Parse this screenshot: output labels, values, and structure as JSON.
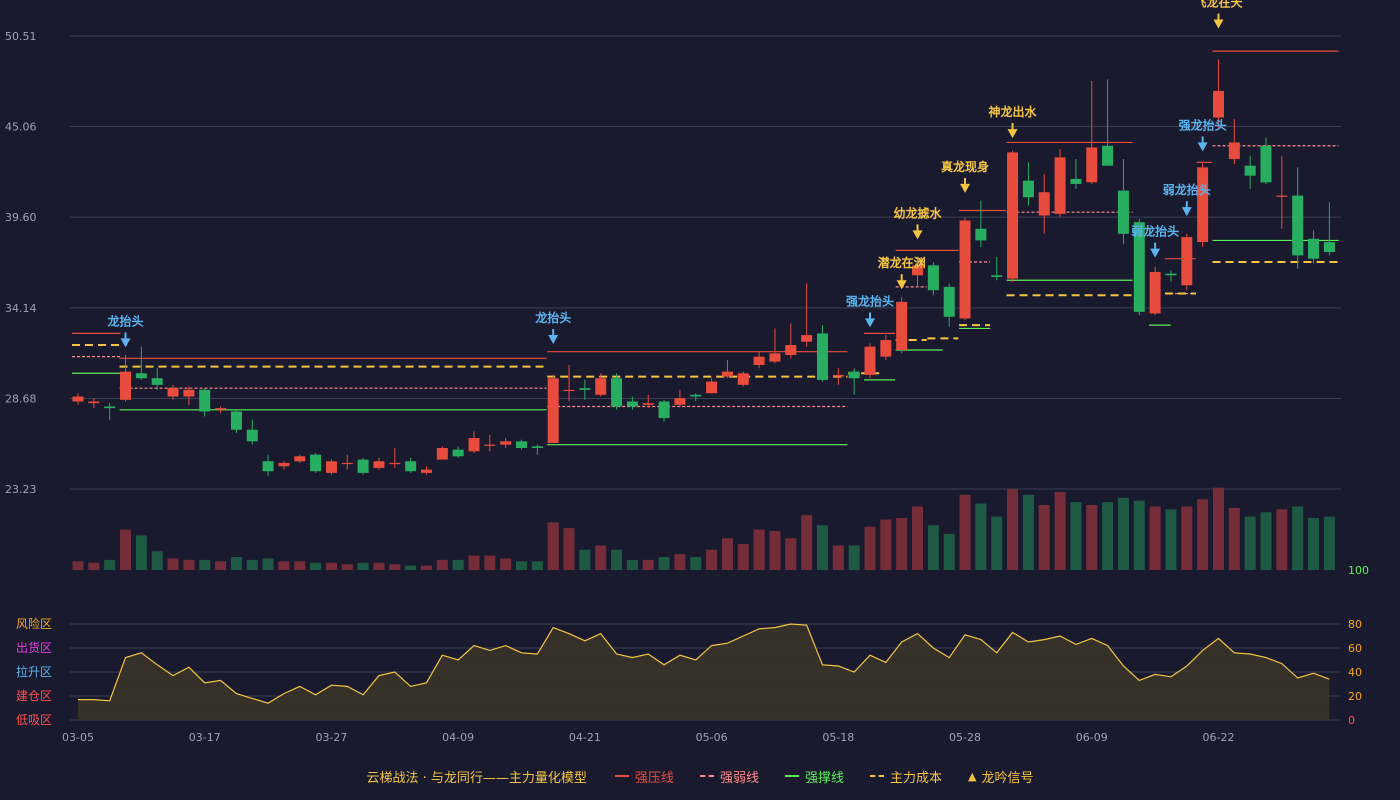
{
  "chart_data": {
    "type": "candlestick",
    "y_ticks": [
      "50.51",
      "45.06",
      "39.60",
      "34.14",
      "28.68",
      "23.23"
    ],
    "ylim": [
      23.23,
      50.51
    ],
    "x_tick_labels": [
      "03-05",
      "03-17",
      "03-27",
      "04-09",
      "04-21",
      "05-06",
      "05-18",
      "05-28",
      "06-09",
      "06-22"
    ],
    "x_tick_index": [
      0,
      8,
      16,
      24,
      32,
      40,
      48,
      56,
      64,
      72
    ],
    "candles": [
      [
        28.5,
        28.8,
        29.0,
        28.3
      ],
      [
        28.4,
        28.5,
        28.7,
        28.1
      ],
      [
        28.2,
        28.1,
        28.4,
        27.4
      ],
      [
        28.6,
        30.3,
        31.3,
        28.5
      ],
      [
        30.2,
        29.9,
        31.8,
        29.8
      ],
      [
        29.9,
        29.5,
        30.5,
        29.2
      ],
      [
        28.8,
        29.3,
        29.5,
        28.6
      ],
      [
        28.8,
        29.2,
        29.4,
        28.3
      ],
      [
        29.2,
        27.9,
        29.3,
        27.6
      ],
      [
        28.0,
        28.1,
        28.2,
        27.8
      ],
      [
        27.9,
        26.8,
        28.0,
        26.6
      ],
      [
        26.8,
        26.1,
        27.4,
        25.9
      ],
      [
        24.9,
        24.3,
        25.3,
        24.0
      ],
      [
        24.6,
        24.8,
        24.9,
        24.4
      ],
      [
        24.9,
        25.2,
        25.3,
        24.8
      ],
      [
        25.3,
        24.3,
        25.4,
        24.2
      ],
      [
        24.2,
        24.9,
        25.0,
        24.1
      ],
      [
        24.8,
        24.8,
        25.3,
        24.4
      ],
      [
        25.0,
        24.2,
        25.1,
        24.1
      ],
      [
        24.5,
        24.9,
        25.1,
        24.4
      ],
      [
        24.8,
        24.8,
        25.7,
        24.5
      ],
      [
        24.9,
        24.3,
        25.1,
        24.2
      ],
      [
        24.2,
        24.4,
        24.6,
        24.1
      ],
      [
        25.0,
        25.7,
        25.8,
        25.0
      ],
      [
        25.6,
        25.2,
        25.8,
        25.1
      ],
      [
        25.5,
        26.3,
        26.7,
        25.4
      ],
      [
        25.9,
        25.9,
        26.5,
        25.5
      ],
      [
        25.9,
        26.1,
        26.3,
        25.7
      ],
      [
        26.1,
        25.7,
        26.2,
        25.6
      ],
      [
        25.8,
        25.7,
        25.9,
        25.3
      ],
      [
        26.0,
        29.9,
        30.1,
        26.0
      ],
      [
        29.2,
        29.2,
        30.7,
        28.5
      ],
      [
        29.3,
        29.2,
        29.8,
        28.6
      ],
      [
        28.9,
        29.9,
        30.2,
        28.8
      ],
      [
        29.9,
        28.2,
        30.2,
        28.0
      ],
      [
        28.5,
        28.2,
        28.8,
        28.0
      ],
      [
        28.3,
        28.4,
        28.9,
        28.1
      ],
      [
        28.5,
        27.5,
        28.6,
        27.3
      ],
      [
        28.3,
        28.7,
        29.2,
        28.2
      ],
      [
        28.9,
        28.8,
        29.0,
        28.5
      ],
      [
        29.0,
        29.7,
        29.9,
        29.0
      ],
      [
        30.0,
        30.3,
        31.0,
        29.9
      ],
      [
        29.5,
        30.2,
        30.3,
        29.4
      ],
      [
        30.7,
        31.2,
        31.5,
        30.5
      ],
      [
        30.9,
        31.4,
        32.9,
        30.8
      ],
      [
        31.3,
        31.9,
        33.2,
        31.1
      ],
      [
        32.1,
        32.5,
        35.6,
        31.8
      ],
      [
        32.6,
        29.8,
        33.1,
        29.7
      ],
      [
        30.0,
        30.1,
        30.5,
        29.5
      ],
      [
        30.3,
        29.9,
        30.5,
        28.9
      ],
      [
        30.1,
        31.8,
        32.0,
        29.9
      ],
      [
        31.2,
        32.2,
        32.5,
        31.0
      ],
      [
        31.6,
        34.5,
        34.8,
        31.4
      ],
      [
        36.1,
        36.7,
        36.8,
        35.4
      ],
      [
        36.7,
        35.2,
        36.9,
        34.9
      ],
      [
        35.4,
        33.6,
        35.6,
        33.0
      ],
      [
        33.5,
        39.4,
        39.6,
        33.4
      ],
      [
        38.9,
        38.2,
        40.6,
        37.8
      ],
      [
        36.1,
        36.0,
        37.2,
        35.8
      ],
      [
        35.9,
        43.5,
        43.6,
        35.7
      ],
      [
        41.8,
        40.8,
        42.9,
        40.3
      ],
      [
        39.7,
        41.1,
        42.2,
        38.6
      ],
      [
        39.8,
        43.2,
        43.7,
        39.6
      ],
      [
        41.9,
        41.6,
        43.1,
        41.3
      ],
      [
        41.7,
        43.8,
        47.8,
        41.6
      ],
      [
        43.9,
        42.7,
        47.9,
        42.7
      ],
      [
        41.2,
        38.6,
        43.1,
        38.0
      ],
      [
        39.3,
        33.9,
        39.5,
        33.7
      ],
      [
        33.8,
        36.3,
        36.6,
        33.7
      ],
      [
        36.2,
        36.1,
        36.4,
        35.7
      ],
      [
        35.5,
        38.4,
        38.6,
        35.2
      ],
      [
        38.1,
        42.6,
        42.9,
        37.8
      ],
      [
        45.6,
        47.2,
        49.1,
        44.9
      ],
      [
        43.1,
        44.1,
        45.5,
        42.8
      ],
      [
        42.7,
        42.1,
        43.3,
        41.3
      ],
      [
        43.9,
        41.7,
        44.4,
        41.6
      ],
      [
        40.9,
        40.9,
        43.3,
        38.9
      ],
      [
        40.9,
        37.3,
        42.6,
        36.5
      ],
      [
        38.3,
        37.1,
        38.8,
        36.8
      ],
      [
        38.1,
        37.5,
        40.5,
        37.3
      ]
    ],
    "volume": [
      6,
      5,
      7,
      28,
      24,
      13,
      8,
      7,
      7,
      6,
      9,
      7,
      8,
      6,
      6,
      5,
      5,
      4,
      5,
      5,
      4,
      3,
      3,
      7,
      7,
      10,
      10,
      8,
      6,
      6,
      33,
      29,
      14,
      17,
      14,
      7,
      7,
      9,
      11,
      9,
      14,
      22,
      18,
      28,
      27,
      22,
      38,
      31,
      17,
      17,
      30,
      35,
      36,
      44,
      31,
      25,
      52,
      46,
      37,
      56,
      52,
      45,
      54,
      47,
      45,
      47,
      50,
      48,
      44,
      42,
      44,
      49,
      57,
      43,
      37,
      40,
      42,
      44,
      36,
      37
    ],
    "lines": [
      {
        "name": "强压线",
        "style": "solid",
        "color": "#e74c3c",
        "segments": [
          {
            "x0": 0,
            "x1": 2.3,
            "y": 32.6
          },
          {
            "x0": 3,
            "x1": 29.2,
            "y": 31.1
          },
          {
            "x0": 30,
            "x1": 48.2,
            "y": 31.5
          },
          {
            "x0": 50,
            "x1": 51.2,
            "y": 32.6
          },
          {
            "x0": 52,
            "x1": 55.2,
            "y": 37.6
          },
          {
            "x0": 56,
            "x1": 58.2,
            "y": 40.0
          },
          {
            "x0": 59,
            "x1": 66.2,
            "y": 44.1
          },
          {
            "x0": 69,
            "x1": 70.2,
            "y": 37.1
          },
          {
            "x0": 71,
            "x1": 71.2,
            "y": 42.9
          },
          {
            "x0": 72,
            "x1": 79.2,
            "y": 49.6
          }
        ]
      },
      {
        "name": "强弱线",
        "style": "dashed",
        "color": "#ff8a8a",
        "segments": [
          {
            "x0": 0,
            "x1": 2.3,
            "y": 31.2
          },
          {
            "x0": 3,
            "x1": 29.2,
            "y": 29.3
          },
          {
            "x0": 30,
            "x1": 48.2,
            "y": 28.2
          },
          {
            "x0": 52,
            "x1": 53.2,
            "y": 35.4
          },
          {
            "x0": 56,
            "x1": 57.2,
            "y": 36.9
          },
          {
            "x0": 59,
            "x1": 66.2,
            "y": 39.9
          },
          {
            "x0": 69,
            "x1": 70.2,
            "y": 35.0
          },
          {
            "x0": 72,
            "x1": 79.2,
            "y": 43.9
          }
        ]
      },
      {
        "name": "强撑线",
        "style": "solid",
        "color": "#5af05a",
        "segments": [
          {
            "x0": 0,
            "x1": 2.3,
            "y": 30.2
          },
          {
            "x0": 3,
            "x1": 29.2,
            "y": 28.0
          },
          {
            "x0": 30,
            "x1": 48.2,
            "y": 25.9
          },
          {
            "x0": 50,
            "x1": 51.2,
            "y": 29.8
          },
          {
            "x0": 52,
            "x1": 54.2,
            "y": 31.6
          },
          {
            "x0": 56,
            "x1": 57.2,
            "y": 32.9
          },
          {
            "x0": 59,
            "x1": 66.2,
            "y": 35.8
          },
          {
            "x0": 68,
            "x1": 68.6,
            "y": 33.1
          },
          {
            "x0": 72,
            "x1": 79.2,
            "y": 38.2
          }
        ]
      },
      {
        "name": "主力成本",
        "style": "dashed",
        "color": "#f5c542",
        "segments": [
          {
            "x0": 0,
            "x1": 2.3,
            "y": 31.9
          },
          {
            "x0": 3,
            "x1": 29.2,
            "y": 30.6
          },
          {
            "x0": 30,
            "x1": 48.2,
            "y": 30.0
          },
          {
            "x0": 49,
            "x1": 50.2,
            "y": 30.2
          },
          {
            "x0": 52,
            "x1": 53.2,
            "y": 32.2
          },
          {
            "x0": 54,
            "x1": 55.2,
            "y": 32.3
          },
          {
            "x0": 56,
            "x1": 57.2,
            "y": 33.1
          },
          {
            "x0": 59,
            "x1": 66.2,
            "y": 34.9
          },
          {
            "x0": 69,
            "x1": 70.2,
            "y": 35.0
          },
          {
            "x0": 72,
            "x1": 79.2,
            "y": 36.9
          }
        ]
      }
    ],
    "signals": [
      {
        "index": 3,
        "label": "龙抬头",
        "color": "#5ab4f0",
        "ref": 31.4
      },
      {
        "index": 30,
        "label": "龙抬头",
        "color": "#5ab4f0",
        "ref": 31.6
      },
      {
        "index": 50,
        "label": "强龙抬头",
        "color": "#5ab4f0",
        "ref": 32.6
      },
      {
        "index": 52,
        "label": "潜龙在渊",
        "color": "#f5c542",
        "ref": 34.9
      },
      {
        "index": 53,
        "label": "幼龙摅水",
        "color": "#f5c542",
        "ref": 37.9
      },
      {
        "index": 56,
        "label": "真龙现身",
        "color": "#f5c542",
        "ref": 40.7
      },
      {
        "index": 59,
        "label": "神龙出水",
        "color": "#f5c542",
        "ref": 44.0
      },
      {
        "index": 68,
        "label": "弱龙抬头",
        "color": "#5ab4f0",
        "ref": 36.8
      },
      {
        "index": 70,
        "label": "弱龙抬头",
        "color": "#5ab4f0",
        "ref": 39.3
      },
      {
        "index": 71,
        "label": "强龙抬头",
        "color": "#5ab4f0",
        "ref": 43.2
      },
      {
        "index": 72,
        "label": "飞龙在天",
        "color": "#f5c542",
        "ref": 50.6
      }
    ],
    "oscillator": {
      "ylim": [
        0,
        100
      ],
      "y_ticks": [
        "100",
        "80",
        "60",
        "40",
        "20",
        "0"
      ],
      "zones": [
        {
          "label": "风险区",
          "color": "#f5a623",
          "level": 80
        },
        {
          "label": "出货区",
          "color": "#e040e0",
          "level": 60
        },
        {
          "label": "拉升区",
          "color": "#5ab4f0",
          "level": 40
        },
        {
          "label": "建仓区",
          "color": "#ff5050",
          "level": 20
        },
        {
          "label": "低吸区",
          "color": "#ff5050",
          "level": 0
        }
      ],
      "values": [
        17,
        17,
        16,
        52,
        56,
        46,
        37,
        44,
        31,
        33,
        22,
        18,
        14,
        22,
        28,
        21,
        29,
        28,
        21,
        37,
        40,
        28,
        31,
        54,
        50,
        62,
        58,
        62,
        56,
        55,
        77,
        72,
        66,
        72,
        55,
        52,
        55,
        46,
        54,
        50,
        62,
        64,
        70,
        76,
        77,
        80,
        79,
        46,
        45,
        40,
        54,
        48,
        65,
        72,
        60,
        52,
        71,
        67,
        56,
        73,
        65,
        67,
        70,
        63,
        68,
        62,
        45,
        33,
        38,
        36,
        45,
        58,
        68,
        56,
        55,
        52,
        47,
        35,
        39,
        34
      ]
    }
  },
  "legend": {
    "title": "云梯战法 · 与龙同行——主力量化模型",
    "strong_pressure": "强压线",
    "strong_weak": "强弱线",
    "strong_support": "强撑线",
    "main_cost": "主力成本",
    "signal": "龙吟信号"
  },
  "colors": {
    "background": "#1a1a2e",
    "up": "#e74c3c",
    "down": "#27ae60",
    "accent": "#f5c542",
    "signal_blue": "#5ab4f0"
  }
}
